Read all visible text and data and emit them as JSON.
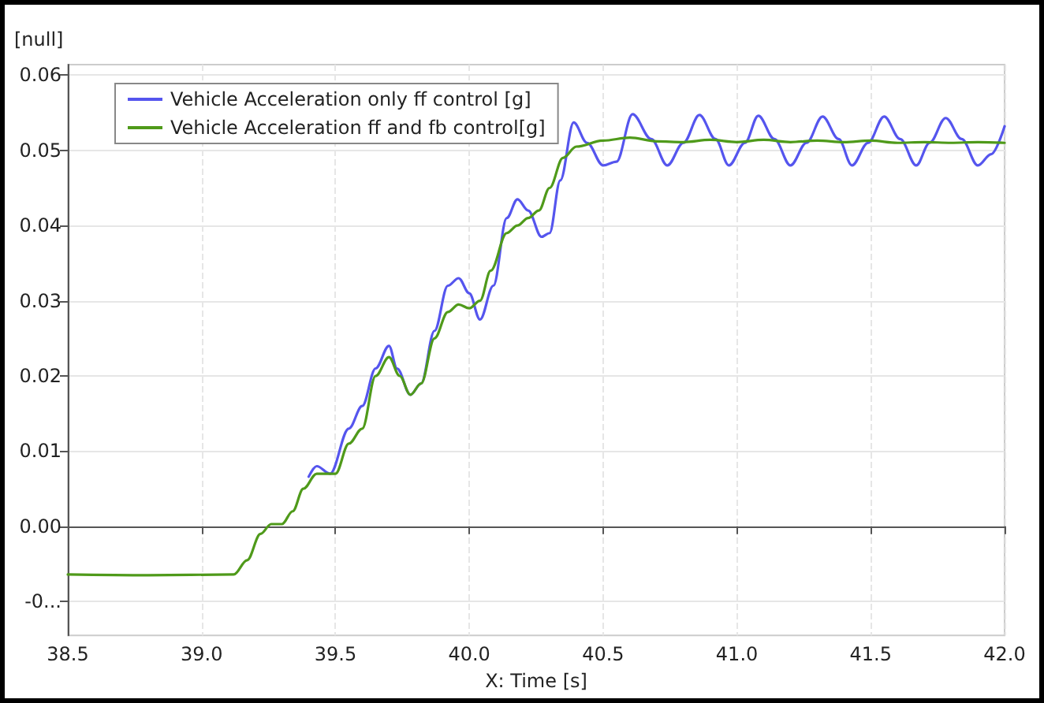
{
  "chart_data": {
    "type": "line",
    "ylabel": "[null]",
    "xlabel": "X: Time [s]",
    "xlim": [
      38.5,
      42.0
    ],
    "ylim": [
      -0.0145,
      0.0614
    ],
    "xticks": [
      {
        "value": 38.5,
        "label": "38.5"
      },
      {
        "value": 39,
        "label": "39.0"
      },
      {
        "value": 39.5,
        "label": "39.5"
      },
      {
        "value": 40,
        "label": "40.0"
      },
      {
        "value": 40.5,
        "label": "40.5"
      },
      {
        "value": 41,
        "label": "41.0"
      },
      {
        "value": 41.5,
        "label": "41.5"
      },
      {
        "value": 42,
        "label": "42.0"
      }
    ],
    "yticks": [
      {
        "value": -0.01,
        "label": "-0..."
      },
      {
        "value": 0,
        "label": "0.00"
      },
      {
        "value": 0.01,
        "label": "0.01"
      },
      {
        "value": 0.02,
        "label": "0.02"
      },
      {
        "value": 0.03,
        "label": "0.03"
      },
      {
        "value": 0.04,
        "label": "0.04"
      },
      {
        "value": 0.05,
        "label": "0.05"
      },
      {
        "value": 0.06,
        "label": "0.06"
      }
    ],
    "grid": true,
    "legend": "top left",
    "marker": "none",
    "line_style": "solid",
    "series": [
      {
        "name": "Vehicle Acceleration only ff control [g]",
        "color": "#5555ee",
        "x": [
          39.4,
          39.43,
          39.48,
          39.55,
          39.6,
          39.65,
          39.7,
          39.73,
          39.78,
          39.82,
          39.87,
          39.92,
          39.96,
          40.0,
          40.04,
          40.09,
          40.14,
          40.18,
          40.22,
          40.27,
          40.3,
          40.34,
          40.39,
          40.44,
          40.5,
          40.55,
          40.61,
          40.68,
          40.74,
          40.8,
          40.86,
          40.92,
          40.97,
          41.03,
          41.08,
          41.14,
          41.2,
          41.26,
          41.32,
          41.38,
          41.43,
          41.49,
          41.55,
          41.61,
          41.67,
          41.72,
          41.78,
          41.84,
          41.9,
          41.95,
          42.0
        ],
        "values": [
          0.0066,
          0.008,
          0.007,
          0.013,
          0.016,
          0.021,
          0.024,
          0.021,
          0.0175,
          0.019,
          0.026,
          0.032,
          0.033,
          0.031,
          0.0275,
          0.032,
          0.041,
          0.0435,
          0.042,
          0.0385,
          0.039,
          0.046,
          0.0537,
          0.051,
          0.048,
          0.0485,
          0.0548,
          0.0515,
          0.048,
          0.051,
          0.0547,
          0.0515,
          0.048,
          0.051,
          0.0546,
          0.0515,
          0.048,
          0.051,
          0.0545,
          0.0515,
          0.048,
          0.051,
          0.0545,
          0.0515,
          0.048,
          0.051,
          0.0543,
          0.0515,
          0.048,
          0.0495,
          0.0532
        ]
      },
      {
        "name": "Vehicle Acceleration ff and fb control[g]",
        "color": "#4f9a1a",
        "x": [
          38.5,
          38.8,
          39.12,
          39.17,
          39.22,
          39.26,
          39.3,
          39.34,
          39.38,
          39.43,
          39.5,
          39.55,
          39.6,
          39.65,
          39.7,
          39.74,
          39.78,
          39.82,
          39.87,
          39.92,
          39.96,
          40.0,
          40.04,
          40.08,
          40.14,
          40.18,
          40.22,
          40.26,
          40.3,
          40.35,
          40.4,
          40.5,
          40.6,
          40.7,
          40.8,
          40.9,
          41.0,
          41.1,
          41.2,
          41.3,
          41.4,
          41.5,
          41.6,
          41.7,
          41.8,
          41.9,
          42.0
        ],
        "values": [
          -0.0064,
          -0.0065,
          -0.0064,
          -0.0045,
          -0.001,
          0.0003,
          0.0003,
          0.002,
          0.005,
          0.007,
          0.007,
          0.011,
          0.013,
          0.02,
          0.0225,
          0.02,
          0.0175,
          0.019,
          0.025,
          0.0285,
          0.0295,
          0.029,
          0.03,
          0.034,
          0.039,
          0.04,
          0.041,
          0.042,
          0.045,
          0.049,
          0.0505,
          0.0513,
          0.0517,
          0.0512,
          0.0511,
          0.0514,
          0.0511,
          0.0514,
          0.0511,
          0.0513,
          0.0511,
          0.0513,
          0.051,
          0.0511,
          0.051,
          0.0511,
          0.051
        ]
      }
    ]
  }
}
